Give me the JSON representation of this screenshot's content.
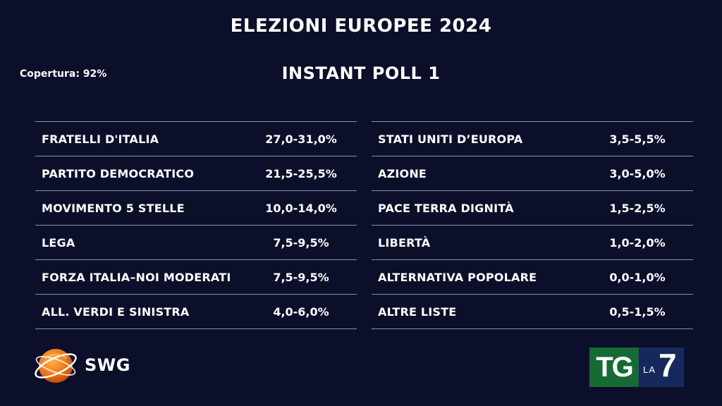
{
  "header": {
    "title": "ELEZIONI EUROPEE 2024",
    "subtitle": "INSTANT POLL 1",
    "coverage": "Copertura: 92%"
  },
  "results": {
    "left": [
      {
        "party": "FRATELLI D'ITALIA",
        "range": "27,0-31,0%"
      },
      {
        "party": "PARTITO DEMOCRATICO",
        "range": "21,5-25,5%"
      },
      {
        "party": "MOVIMENTO 5 STELLE",
        "range": "10,0-14,0%"
      },
      {
        "party": "LEGA",
        "range": "7,5-9,5%"
      },
      {
        "party": "FORZA ITALIA–NOI MODERATI",
        "range": "7,5-9,5%"
      },
      {
        "party": "ALL. VERDI E SINISTRA",
        "range": "4,0-6,0%"
      }
    ],
    "right": [
      {
        "party": "STATI UNITI D’EUROPA",
        "range": "3,5-5,5%"
      },
      {
        "party": "AZIONE",
        "range": "3,0-5,0%"
      },
      {
        "party": "PACE TERRA DIGNITÀ",
        "range": "1,5-2,5%"
      },
      {
        "party": "LIBERTÀ",
        "range": "1,0-2,0%"
      },
      {
        "party": "ALTERNATIVA POPOLARE",
        "range": "0,0-1,0%"
      },
      {
        "party": "ALTRE LISTE",
        "range": "0,5-1,5%"
      }
    ]
  },
  "logos": {
    "swg": {
      "text": "SWG",
      "icon": "globe-icon",
      "color": "#f07a1a"
    },
    "tg": {
      "tg_text": "TG",
      "la_text": "LA",
      "seven_text": "7",
      "tg_color": "#166a33",
      "la7_color": "#16285c"
    }
  },
  "colors": {
    "background": "#0c0f2a",
    "text": "#ffffff",
    "divider": "#8a8ea6"
  }
}
